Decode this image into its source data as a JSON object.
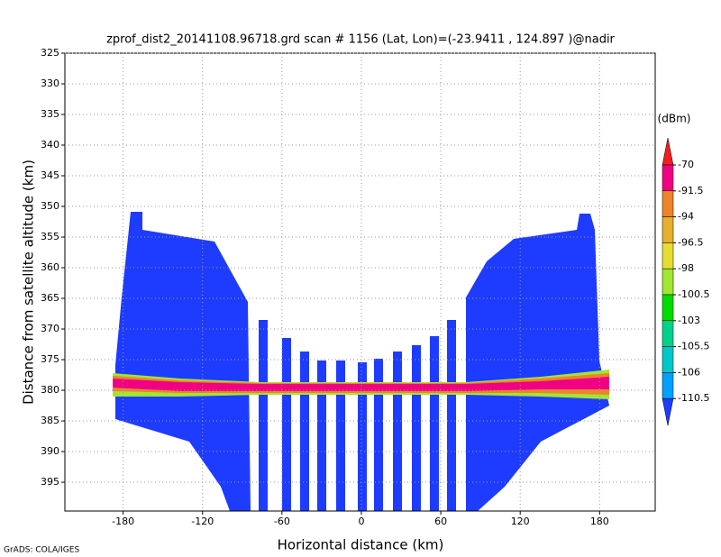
{
  "chart_data": {
    "type": "heatmap",
    "title": "zprof_dist2_20141108.96718.grd  scan # 1156  (Lat, Lon)=(-23.9411 , 124.897 )@nadir",
    "x_label": "Horizontal distance (km)",
    "y_label": "Distance from satellite altitude (km)",
    "xlim": [
      -224,
      222
    ],
    "xticks": [
      -180,
      -120,
      -60,
      0,
      60,
      120,
      180
    ],
    "ylim": [
      325,
      399.7
    ],
    "y_inverted": true,
    "yticks": [
      325,
      330,
      335,
      340,
      345,
      350,
      355,
      360,
      365,
      370,
      375,
      380,
      385,
      390,
      395
    ],
    "grid": true,
    "colorbar": {
      "unit": "(dBm)",
      "levels": [
        -70,
        -91.5,
        -94,
        -96.5,
        -98,
        -100.5,
        -103,
        -105.5,
        -106,
        -110.5
      ],
      "colors": [
        "#f01e1e",
        "#f00082",
        "#f08228",
        "#e6af2d",
        "#e6dc32",
        "#a0e632",
        "#00dc00",
        "#00d28c",
        "#00c8c8",
        "#00a0ff",
        "#1e3cff"
      ]
    },
    "footer": "GrADS: COLA/IGES"
  }
}
